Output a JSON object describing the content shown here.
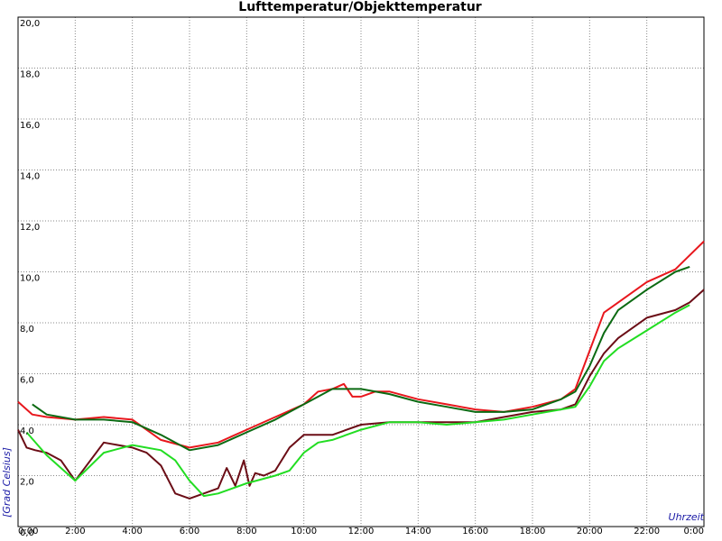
{
  "chart_data": {
    "type": "line",
    "title": "Lufttemperatur/Objekttemperatur",
    "xlabel": "Uhrzeit",
    "ylabel": "[Grad Celsius]",
    "xlim": [
      0,
      24
    ],
    "ylim": [
      0,
      20
    ],
    "x_ticks": [
      {
        "v": 0,
        "label": "0:00"
      },
      {
        "v": 2,
        "label": "2:00"
      },
      {
        "v": 4,
        "label": "4:00"
      },
      {
        "v": 6,
        "label": "6:00"
      },
      {
        "v": 8,
        "label": "8:00"
      },
      {
        "v": 10,
        "label": "10:00"
      },
      {
        "v": 12,
        "label": "12:00"
      },
      {
        "v": 14,
        "label": "14:00"
      },
      {
        "v": 16,
        "label": "16:00"
      },
      {
        "v": 18,
        "label": "18:00"
      },
      {
        "v": 20,
        "label": "20:00"
      },
      {
        "v": 22,
        "label": "22:00"
      },
      {
        "v": 24,
        "label": "0:00"
      }
    ],
    "y_ticks": [
      {
        "v": 0,
        "label": "0,0"
      },
      {
        "v": 2,
        "label": "2,0"
      },
      {
        "v": 4,
        "label": "4,0"
      },
      {
        "v": 6,
        "label": "6,0"
      },
      {
        "v": 8,
        "label": "8,0"
      },
      {
        "v": 10,
        "label": "10,0"
      },
      {
        "v": 12,
        "label": "12,0"
      },
      {
        "v": 14,
        "label": "14,0"
      },
      {
        "v": 16,
        "label": "16,0"
      },
      {
        "v": 18,
        "label": "18,0"
      },
      {
        "v": 20,
        "label": "20,0"
      }
    ],
    "grid": true,
    "series": [
      {
        "color": "#e8171d",
        "x": [
          0,
          0.5,
          1,
          2,
          3,
          4,
          5,
          6,
          7,
          8,
          9,
          10,
          10.5,
          11,
          11.4,
          11.7,
          12,
          12.5,
          13,
          14,
          15,
          16,
          17,
          18,
          19,
          19.5,
          20,
          20.5,
          21,
          22,
          23,
          24
        ],
        "y": [
          4.9,
          4.4,
          4.3,
          4.2,
          4.3,
          4.2,
          3.4,
          3.1,
          3.3,
          3.8,
          4.3,
          4.8,
          5.3,
          5.4,
          5.6,
          5.1,
          5.1,
          5.3,
          5.3,
          5.0,
          4.8,
          4.6,
          4.5,
          4.7,
          5.0,
          5.4,
          6.9,
          8.4,
          8.8,
          9.6,
          10.1,
          11.2
        ]
      },
      {
        "color": "#0b6a12",
        "x": [
          0.5,
          1,
          2,
          3,
          4,
          5,
          6,
          7,
          8,
          9,
          10,
          11,
          11.5,
          12,
          13,
          14,
          15,
          16,
          17,
          18,
          19,
          19.5,
          20,
          20.5,
          21,
          22,
          23,
          23.5
        ],
        "y": [
          4.8,
          4.4,
          4.2,
          4.2,
          4.1,
          3.6,
          3.0,
          3.2,
          3.7,
          4.2,
          4.8,
          5.4,
          5.4,
          5.4,
          5.2,
          4.9,
          4.7,
          4.5,
          4.5,
          4.6,
          5.0,
          5.3,
          6.3,
          7.6,
          8.5,
          9.3,
          10.0,
          10.2
        ]
      },
      {
        "color": "#6b0d16",
        "x": [
          0,
          0.3,
          0.6,
          1,
          1.5,
          2,
          2.4,
          3,
          3.5,
          4,
          4.5,
          5,
          5.5,
          6,
          6.5,
          7,
          7.3,
          7.6,
          7.9,
          8.1,
          8.3,
          8.6,
          9,
          9.5,
          10,
          10.5,
          11,
          11.5,
          12,
          13,
          14,
          15,
          16,
          17,
          18,
          19,
          19.5,
          20,
          20.5,
          21,
          22,
          23,
          23.5,
          24
        ],
        "y": [
          3.8,
          3.1,
          3.0,
          2.9,
          2.6,
          1.8,
          2.4,
          3.3,
          3.2,
          3.1,
          2.9,
          2.4,
          1.3,
          1.1,
          1.3,
          1.5,
          2.3,
          1.6,
          2.6,
          1.6,
          2.1,
          2.0,
          2.2,
          3.1,
          3.6,
          3.6,
          3.6,
          3.8,
          4.0,
          4.1,
          4.1,
          4.1,
          4.1,
          4.3,
          4.5,
          4.6,
          4.8,
          5.9,
          6.8,
          7.4,
          8.2,
          8.5,
          8.8,
          9.3
        ]
      },
      {
        "color": "#22dd22",
        "x": [
          0.3,
          1,
          2,
          3,
          4,
          5,
          5.5,
          6,
          6.5,
          7,
          8,
          9,
          9.5,
          10,
          10.5,
          11,
          12,
          13,
          14,
          15,
          16,
          17,
          18,
          19,
          19.5,
          20,
          20.5,
          21,
          22,
          23,
          23.5
        ],
        "y": [
          3.7,
          2.8,
          1.8,
          2.9,
          3.2,
          3.0,
          2.6,
          1.8,
          1.2,
          1.3,
          1.7,
          2.0,
          2.2,
          2.9,
          3.3,
          3.4,
          3.8,
          4.1,
          4.1,
          4.0,
          4.1,
          4.2,
          4.4,
          4.6,
          4.7,
          5.5,
          6.5,
          7.0,
          7.7,
          8.4,
          8.7
        ]
      }
    ]
  }
}
